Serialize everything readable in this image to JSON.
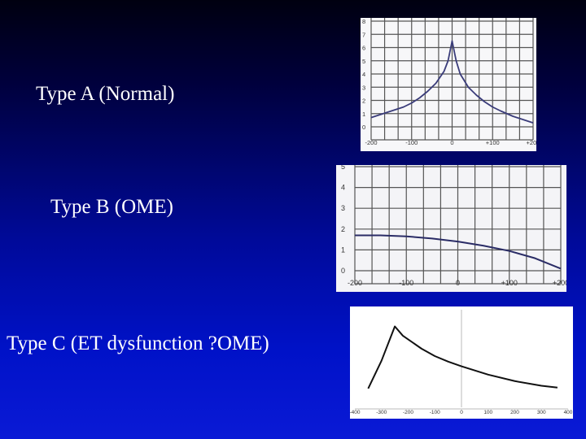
{
  "labels": {
    "type_a": "Type A (Normal)",
    "type_b": "Type B (OME)",
    "type_c": "Type C (ET dysfunction ?OME)"
  },
  "chart_data": [
    {
      "type": "line",
      "title": "",
      "xlabel": "",
      "ylabel": "",
      "x_ticks": [
        "-200",
        "-100",
        "0",
        "+100",
        "+200"
      ],
      "y_ticks": [
        "0",
        "1",
        "2",
        "3",
        "4",
        "5",
        "6",
        "7",
        "8"
      ],
      "xlim": [
        -200,
        200
      ],
      "ylim": [
        0,
        8
      ],
      "grid": true,
      "series": [
        {
          "color": "#3a3c7a",
          "x": [
            -200,
            -180,
            -150,
            -120,
            -100,
            -80,
            -60,
            -40,
            -20,
            -10,
            0,
            10,
            20,
            40,
            60,
            80,
            100,
            120,
            150,
            180,
            200
          ],
          "y": [
            0.7,
            0.9,
            1.2,
            1.5,
            1.8,
            2.2,
            2.7,
            3.3,
            4.2,
            5.0,
            6.5,
            5.0,
            4.0,
            3.0,
            2.4,
            1.9,
            1.5,
            1.2,
            0.8,
            0.5,
            0.3
          ]
        }
      ]
    },
    {
      "type": "line",
      "title": "",
      "xlabel": "",
      "ylabel": "",
      "x_ticks": [
        "-200",
        "-100",
        "0",
        "+100",
        "+200"
      ],
      "y_ticks": [
        "0",
        "1",
        "2",
        "3",
        "4",
        "5"
      ],
      "xlim": [
        -200,
        200
      ],
      "ylim": [
        0,
        5
      ],
      "grid": true,
      "series": [
        {
          "color": "#2a2c66",
          "x": [
            -200,
            -150,
            -100,
            -50,
            0,
            50,
            100,
            150,
            200
          ],
          "y": [
            1.7,
            1.7,
            1.65,
            1.55,
            1.4,
            1.2,
            0.95,
            0.6,
            0.1
          ]
        }
      ]
    },
    {
      "type": "line",
      "title": "",
      "xlabel": "",
      "ylabel": "",
      "x_ticks": [
        "-400",
        "-300",
        "-200",
        "-100",
        "0",
        "100",
        "200",
        "300",
        "400"
      ],
      "xlim": [
        -400,
        400
      ],
      "ylim": [
        0,
        1
      ],
      "grid": false,
      "series": [
        {
          "color": "#111111",
          "x": [
            -350,
            -300,
            -250,
            -220,
            -150,
            -100,
            -50,
            0,
            100,
            200,
            300,
            360
          ],
          "y": [
            0.15,
            0.45,
            0.82,
            0.72,
            0.58,
            0.5,
            0.44,
            0.39,
            0.3,
            0.23,
            0.18,
            0.16
          ]
        }
      ]
    }
  ]
}
